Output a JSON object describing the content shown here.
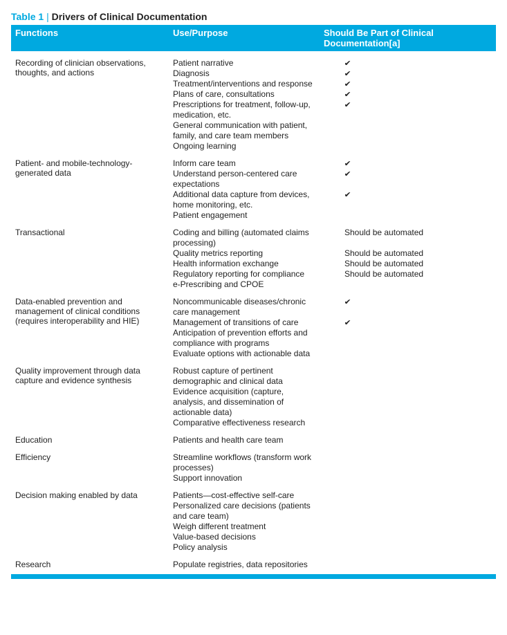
{
  "caption": {
    "label": "Table 1",
    "sep": "|",
    "title": "Drivers of Clinical Documentation"
  },
  "headers": {
    "c1": "Functions",
    "c2": "Use/Purpose",
    "c3": "Should Be Part of Clinical Documentation[a]"
  },
  "colors": {
    "accent": "#00a9e0",
    "text": "#222222",
    "background": "#ffffff"
  },
  "rows": [
    {
      "func": "Recording of clinician observations, thoughts, and actions",
      "items": [
        {
          "use": "Patient narrative",
          "mark": "check"
        },
        {
          "use": "Diagnosis",
          "mark": "check"
        },
        {
          "use": "Treatment/interventions and response",
          "mark": "check"
        },
        {
          "use": "Plans of care, consultations",
          "mark": "check"
        },
        {
          "use": "Prescriptions for treatment, follow-up,\nmedication, etc.",
          "mark": "check"
        },
        {
          "use": "General communication with patient, family, and care team members",
          "mark": ""
        },
        {
          "use": "Ongoing learning",
          "mark": ""
        }
      ]
    },
    {
      "func": "Patient- and mobile-technology-generated data",
      "items": [
        {
          "use": "Inform care team",
          "mark": "check"
        },
        {
          "use": "Understand person-centered care expectations",
          "mark": "check"
        },
        {
          "use": "Additional data capture from devices, home monitoring, etc.",
          "mark": "check"
        },
        {
          "use": "Patient engagement",
          "mark": ""
        }
      ]
    },
    {
      "func": "Transactional",
      "items": [
        {
          "use": "Coding and billing (automated claims processing)",
          "mark": "Should be automated"
        },
        {
          "use": "Quality metrics reporting",
          "mark": "Should be automated"
        },
        {
          "use": "Health information exchange",
          "mark": "Should be automated"
        },
        {
          "use": "Regulatory reporting for compliance",
          "mark": "Should be automated"
        },
        {
          "use": "e-Prescribing and CPOE",
          "mark": ""
        }
      ]
    },
    {
      "func": "Data-enabled prevention and management of clinical conditions (requires interoperability and HIE)",
      "items": [
        {
          "use": "Noncommunicable diseases/chronic care management",
          "mark": "check"
        },
        {
          "use": "Management of transitions of care",
          "mark": "check"
        },
        {
          "use": "Anticipation of prevention efforts and compliance with programs",
          "mark": ""
        },
        {
          "use": "Evaluate options with actionable data",
          "mark": ""
        }
      ]
    },
    {
      "func": "Quality improvement through data capture and evidence synthesis",
      "items": [
        {
          "use": "Robust capture of pertinent demographic and clinical data",
          "mark": ""
        },
        {
          "use": "Evidence acquisition (capture, analysis, and dissemination of actionable data)",
          "mark": ""
        },
        {
          "use": "Comparative effectiveness research",
          "mark": ""
        }
      ]
    },
    {
      "func": "Education",
      "items": [
        {
          "use": "Patients and health care team",
          "mark": ""
        }
      ]
    },
    {
      "func": "Efficiency",
      "items": [
        {
          "use": "Streamline workflows (transform work processes)",
          "mark": ""
        },
        {
          "use": "Support innovation",
          "mark": ""
        }
      ]
    },
    {
      "func": "Decision making enabled by data",
      "items": [
        {
          "use": "Patients—cost-effective self-care",
          "mark": ""
        },
        {
          "use": "Personalized care decisions (patients and care team)",
          "mark": ""
        },
        {
          "use": "Weigh different treatment",
          "mark": ""
        },
        {
          "use": "Value-based decisions",
          "mark": ""
        },
        {
          "use": "Policy analysis",
          "mark": ""
        }
      ]
    },
    {
      "func": "Research",
      "items": [
        {
          "use": "Populate registries, data repositories",
          "mark": ""
        }
      ]
    }
  ]
}
